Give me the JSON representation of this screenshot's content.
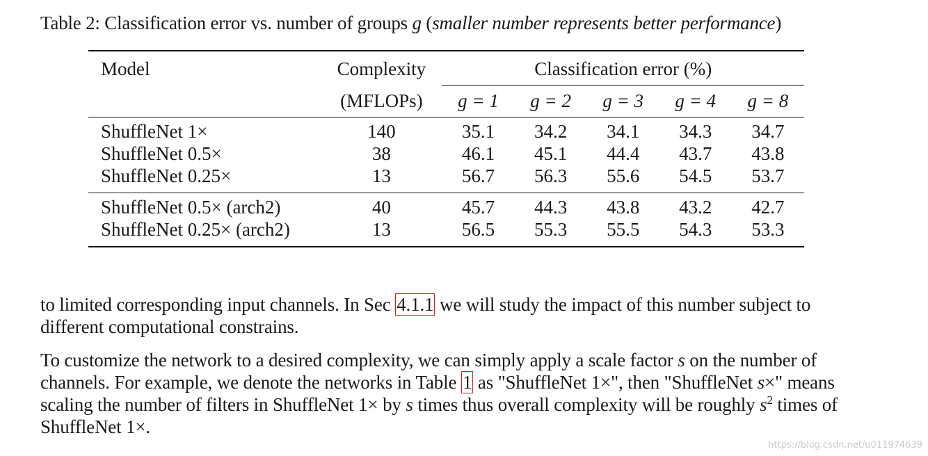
{
  "caption": {
    "prefix": "Table 2: Classification error vs. number of groups ",
    "var": "g",
    "open": " (",
    "italic": "smaller number represents better performance",
    "close": ")"
  },
  "table": {
    "header": {
      "model": "Model",
      "complexity": "Complexity",
      "complexity_unit": "(MFLOPs)",
      "error_group": "Classification error (%)",
      "groups": [
        "g = 1",
        "g = 2",
        "g = 3",
        "g = 4",
        "g = 8"
      ]
    },
    "rows": [
      {
        "model": "ShuffleNet 1×",
        "complexity": "140",
        "errors": [
          "35.1",
          "34.2",
          "34.1",
          "34.3",
          "34.7"
        ],
        "best": 2
      },
      {
        "model": "ShuffleNet 0.5×",
        "complexity": "38",
        "errors": [
          "46.1",
          "45.1",
          "44.4",
          "43.7",
          "43.8"
        ],
        "best": 3
      },
      {
        "model": "ShuffleNet 0.25×",
        "complexity": "13",
        "errors": [
          "56.7",
          "56.3",
          "55.6",
          "54.5",
          "53.7"
        ],
        "best": 4
      },
      {
        "model": "ShuffleNet 0.5× (arch2)",
        "complexity": "40",
        "errors": [
          "45.7",
          "44.3",
          "43.8",
          "43.2",
          "42.7"
        ],
        "best": 4
      },
      {
        "model": "ShuffleNet 0.25× (arch2)",
        "complexity": "13",
        "errors": [
          "56.5",
          "55.3",
          "55.5",
          "54.3",
          "53.3"
        ],
        "best": 4
      }
    ]
  },
  "paragraph1": {
    "before": "to limited corresponding input channels. In Sec ",
    "ref": "4.1.1",
    "after": " we will study the impact of this number subject to different computational constrains."
  },
  "paragraph2": {
    "t1": "To customize the network to a desired complexity, we can simply apply a scale factor ",
    "s1": "s",
    "t2": " on the number of channels. For example, we denote the networks in Table ",
    "ref": "1",
    "t3": " as \"ShuffleNet 1×\", then \"ShuffleNet ",
    "s2": "s",
    "t4": "×\" means scaling the number of filters in ShuffleNet 1× by ",
    "s3": "s",
    "t5": " times thus overall complexity will be roughly ",
    "s4": "s",
    "sup": "2",
    "t6": " times of ShuffleNet 1×."
  },
  "watermark": "https://blog.csdn.net/u011974639"
}
